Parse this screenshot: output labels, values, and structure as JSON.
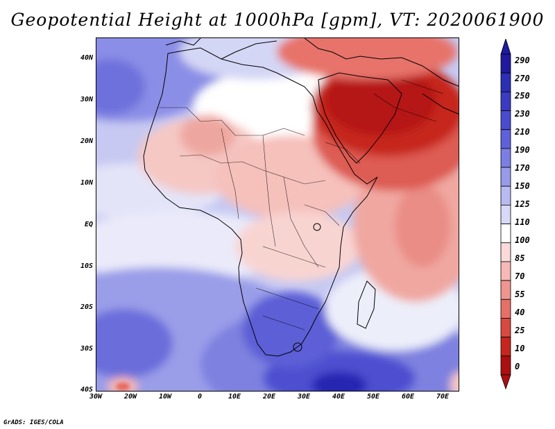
{
  "title": "Geopotential Height at 1000hPa [gpm], VT: 2020061900",
  "footer": "GrADS: IGES/COLA",
  "axes": {
    "lat_labels": [
      "40N",
      "30N",
      "20N",
      "10N",
      "EQ",
      "10S",
      "20S",
      "30S",
      "40S"
    ],
    "lon_labels": [
      "30W",
      "20W",
      "10W",
      "0",
      "10E",
      "20E",
      "30E",
      "40E",
      "50E",
      "60E",
      "70E"
    ]
  },
  "colorbar": {
    "labels": [
      "290",
      "270",
      "250",
      "230",
      "210",
      "190",
      "170",
      "150",
      "125",
      "110",
      "100",
      "85",
      "70",
      "55",
      "40",
      "25",
      "10",
      "0"
    ],
    "colors": [
      "#1f1aa0",
      "#2a2fb4",
      "#3a3ac2",
      "#4a4ccf",
      "#5f61da",
      "#7b7ee2",
      "#989be9",
      "#b8bbf1",
      "#d7d9f7",
      "#ffffff",
      "#fbdada",
      "#f6b9b5",
      "#ef9590",
      "#e57067",
      "#d74a40",
      "#c6261d",
      "#ab0f10"
    ]
  }
}
